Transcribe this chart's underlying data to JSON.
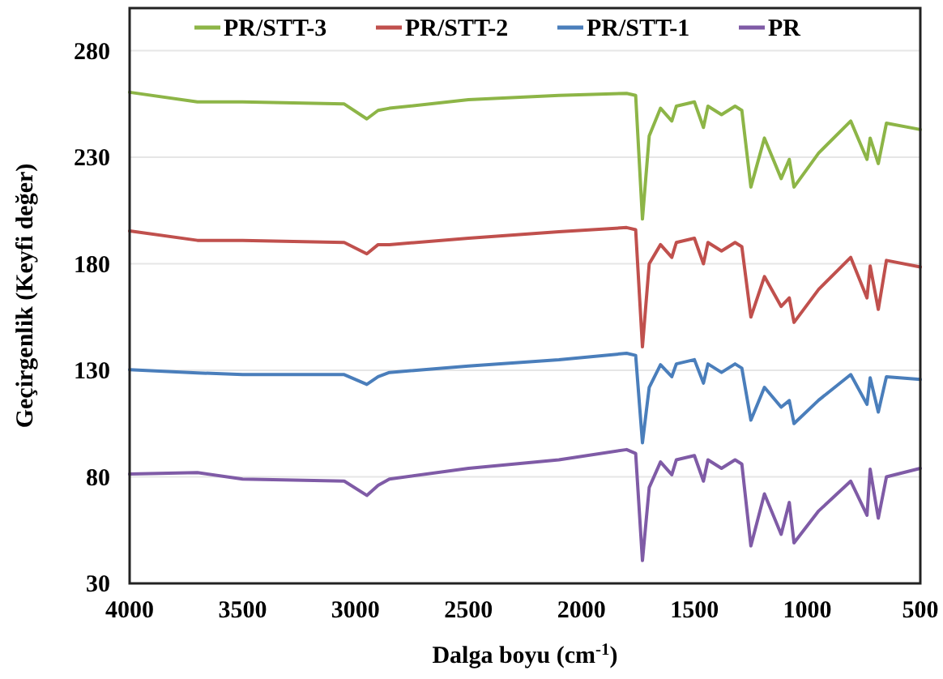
{
  "chart_data": {
    "type": "line",
    "xlabel": "Dalga boyu (cm$^{-1}$)",
    "ylabel": "Geçirgenlik  (Keyfi değer)",
    "x": [
      4000,
      3700,
      3500,
      3050,
      2950,
      2900,
      2850,
      2500,
      2100,
      1800,
      1760,
      1730,
      1700,
      1650,
      1600,
      1580,
      1500,
      1460,
      1440,
      1380,
      1320,
      1290,
      1250,
      1190,
      1116,
      1080,
      1059,
      950,
      808,
      736,
      722,
      686,
      650,
      500
    ],
    "series": [
      {
        "name": "PR/STT-3",
        "color": "#8db547",
        "values": [
          260.5,
          256,
          256,
          255,
          248,
          252,
          253,
          257,
          259,
          260,
          259,
          201,
          240,
          253,
          247,
          254,
          256,
          244,
          254,
          250,
          254,
          252,
          216,
          239,
          220,
          229,
          216,
          232,
          247,
          229,
          239,
          227,
          246,
          243
        ]
      },
      {
        "name": "PR/STT-2",
        "color": "#c0504d",
        "values": [
          195.4,
          191,
          191,
          190,
          184.7,
          189,
          189,
          192,
          195,
          197,
          196,
          141,
          180,
          189,
          183,
          190,
          192,
          180,
          190,
          186,
          190,
          188,
          155,
          174,
          160,
          164,
          152.5,
          168,
          183,
          164,
          179,
          158.6,
          181.6,
          178.5
        ]
      },
      {
        "name": "PR/STT-1",
        "color": "#4a7ebb",
        "values": [
          130.3,
          128.8,
          128,
          128,
          123.4,
          127,
          129,
          132,
          135,
          138,
          137,
          96,
          122,
          132.6,
          127,
          133,
          135,
          124,
          133,
          129,
          133,
          131,
          106.6,
          122,
          112.7,
          115.8,
          105,
          116,
          128,
          114,
          126.5,
          110.4,
          127,
          125.7
        ]
      },
      {
        "name": "PR",
        "color": "#7f5ba6",
        "values": [
          81.3,
          82,
          79,
          78,
          71.3,
          76,
          79,
          84,
          88,
          92.8,
          91,
          40.7,
          75,
          87,
          81,
          88,
          90,
          78,
          88,
          84,
          88,
          86,
          47.6,
          72,
          53,
          68,
          49,
          64,
          78,
          62,
          83.6,
          60.6,
          80,
          84
        ]
      }
    ],
    "xlim": [
      4000,
      500
    ],
    "xticks": [
      4000,
      3500,
      3000,
      2500,
      2000,
      1500,
      1000,
      500
    ],
    "ylim": [
      30,
      300
    ],
    "yticks": [
      30,
      80,
      130,
      180,
      230,
      280
    ],
    "grid": "y",
    "legend": "top",
    "line_style": "solid"
  }
}
